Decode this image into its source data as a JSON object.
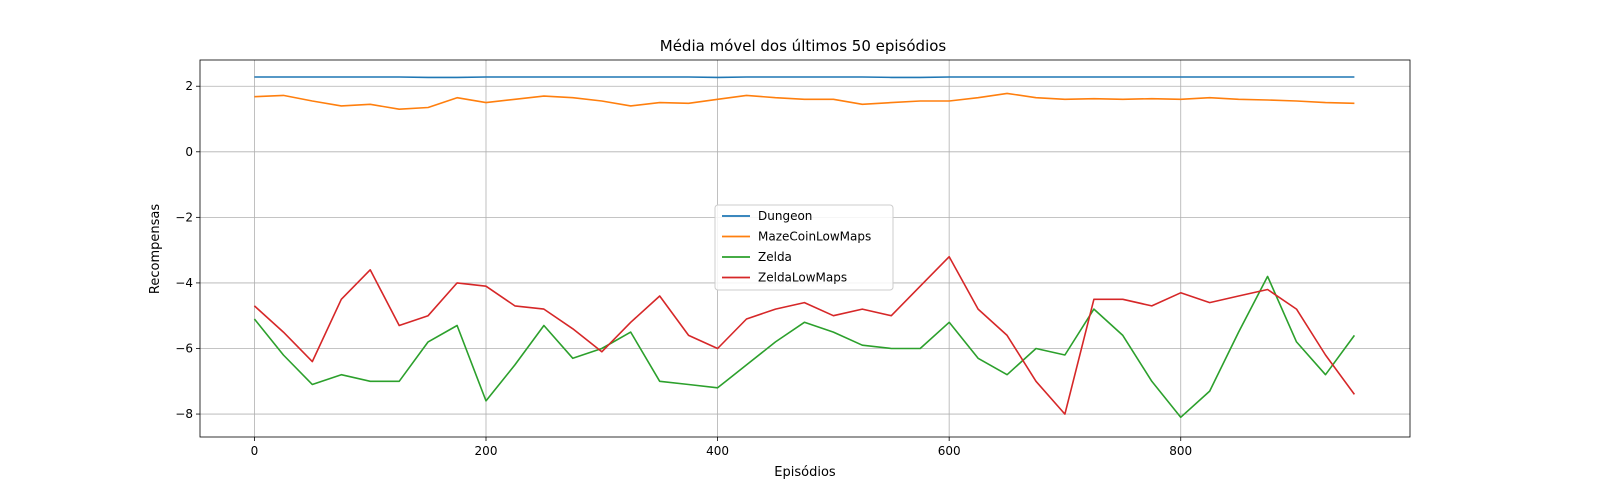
{
  "chart_data": {
    "type": "line",
    "title": "Média móvel dos últimos 50 episódios",
    "xlabel": "Episódios",
    "ylabel": "Recompensas",
    "xlim": [
      -47,
      998
    ],
    "ylim": [
      -8.7,
      2.8
    ],
    "xticks": [
      0,
      200,
      400,
      600,
      800
    ],
    "xtick_labels": [
      "0",
      "200",
      "400",
      "600",
      "800"
    ],
    "yticks": [
      -8,
      -6,
      -4,
      -2,
      0,
      2
    ],
    "ytick_labels": [
      "−8",
      "−6",
      "−4",
      "−2",
      "0",
      "2"
    ],
    "grid": true,
    "legend_location": "center",
    "x": [
      0,
      25,
      50,
      75,
      100,
      125,
      150,
      175,
      200,
      225,
      250,
      275,
      300,
      325,
      350,
      375,
      400,
      425,
      450,
      475,
      500,
      525,
      550,
      575,
      600,
      625,
      650,
      675,
      700,
      725,
      750,
      775,
      800,
      825,
      850,
      875,
      900,
      925,
      950
    ],
    "series": [
      {
        "name": "Dungeon",
        "color": "#1f77b4",
        "values": [
          2.28,
          2.28,
          2.28,
          2.28,
          2.28,
          2.28,
          2.27,
          2.27,
          2.28,
          2.28,
          2.28,
          2.28,
          2.28,
          2.28,
          2.28,
          2.28,
          2.27,
          2.28,
          2.28,
          2.28,
          2.28,
          2.28,
          2.27,
          2.27,
          2.28,
          2.28,
          2.28,
          2.28,
          2.28,
          2.28,
          2.28,
          2.28,
          2.28,
          2.28,
          2.28,
          2.28,
          2.28,
          2.28,
          2.28
        ]
      },
      {
        "name": "MazeCoinLowMaps",
        "color": "#ff7f0e",
        "values": [
          1.68,
          1.72,
          1.55,
          1.4,
          1.45,
          1.3,
          1.35,
          1.65,
          1.5,
          1.6,
          1.7,
          1.65,
          1.55,
          1.4,
          1.5,
          1.48,
          1.6,
          1.72,
          1.65,
          1.6,
          1.6,
          1.45,
          1.5,
          1.55,
          1.55,
          1.65,
          1.78,
          1.65,
          1.6,
          1.62,
          1.6,
          1.62,
          1.6,
          1.65,
          1.6,
          1.58,
          1.55,
          1.5,
          1.48
        ]
      },
      {
        "name": "Zelda",
        "color": "#2ca02c",
        "values": [
          -5.1,
          -6.2,
          -7.1,
          -6.8,
          -7.0,
          -7.0,
          -5.8,
          -5.3,
          -7.6,
          -6.5,
          -5.3,
          -6.3,
          -6.0,
          -5.5,
          -7.0,
          -7.1,
          -7.2,
          -6.5,
          -5.8,
          -5.2,
          -5.5,
          -5.9,
          -6.0,
          -6.0,
          -5.2,
          -6.3,
          -6.8,
          -6.0,
          -6.2,
          -4.8,
          -5.6,
          -7.0,
          -8.1,
          -7.3,
          -5.5,
          -3.8,
          -5.8,
          -6.8,
          -5.6
        ]
      },
      {
        "name": "ZeldaLowMaps",
        "color": "#d62728",
        "values": [
          -4.7,
          -5.5,
          -6.4,
          -4.5,
          -3.6,
          -5.3,
          -5.0,
          -4.0,
          -4.1,
          -4.7,
          -4.8,
          -5.4,
          -6.1,
          -5.2,
          -4.4,
          -5.6,
          -6.0,
          -5.1,
          -4.8,
          -4.6,
          -5.0,
          -4.8,
          -5.0,
          -4.1,
          -3.2,
          -4.8,
          -5.6,
          -7.0,
          -8.0,
          -4.5,
          -4.5,
          -4.7,
          -4.3,
          -4.6,
          -4.4,
          -4.2,
          -4.8,
          -6.2,
          -7.4
        ]
      }
    ]
  }
}
